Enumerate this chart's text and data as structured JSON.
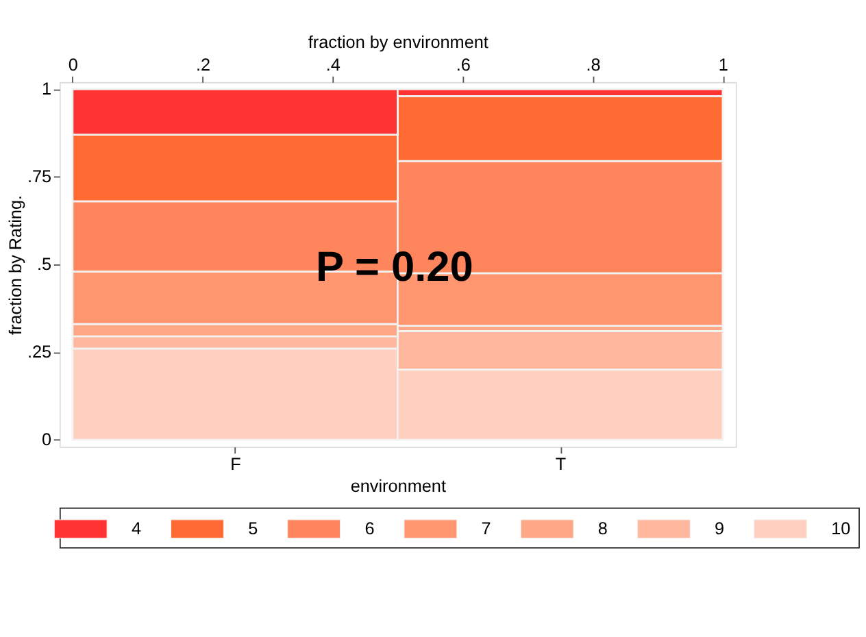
{
  "chart_data": {
    "type": "bar",
    "stacked": true,
    "categories": [
      "F",
      "T"
    ],
    "xlabel": "environment",
    "ylabel": "fraction by Rating.",
    "x2label": "fraction by environment",
    "x2lim": [
      -0.02,
      1.02
    ],
    "x2ticks": [
      0,
      {
        "value": 0.2,
        "label": ".2"
      },
      {
        "value": 0.4,
        "label": ".4"
      },
      {
        "value": 0.6,
        "label": ".6"
      },
      {
        "value": 0.8,
        "label": ".8"
      },
      1
    ],
    "ylim": [
      -0.02,
      1.02
    ],
    "yticks": [
      0,
      {
        "value": 0.25,
        "label": ".25"
      },
      {
        "value": 0.5,
        "label": ".5"
      },
      {
        "value": 0.75,
        "label": ".75"
      },
      1
    ],
    "series": [
      {
        "name": "10",
        "color": "#ffd0c0",
        "values": [
          0.26,
          0.2
        ]
      },
      {
        "name": "9",
        "color": "#ffb89d",
        "values": [
          0.035,
          0.11
        ]
      },
      {
        "name": "8",
        "color": "#ffa888",
        "values": [
          0.035,
          0.015
        ]
      },
      {
        "name": "7",
        "color": "#ff9670",
        "values": [
          0.15,
          0.15
        ]
      },
      {
        "name": "6",
        "color": "#ff865c",
        "values": [
          0.2,
          0.32
        ]
      },
      {
        "name": "5",
        "color": "#ff6a33",
        "values": [
          0.19,
          0.185
        ]
      },
      {
        "name": "4",
        "color": "#ff3333",
        "values": [
          0.13,
          0.02
        ]
      }
    ],
    "legend": "bottom",
    "grid": false,
    "annotations": [
      "P = 0.20"
    ]
  }
}
